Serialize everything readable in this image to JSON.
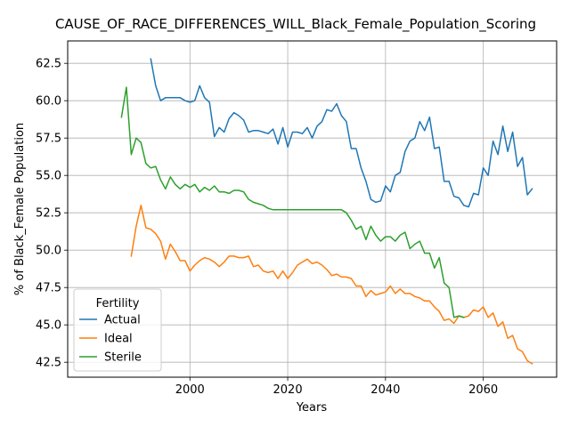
{
  "chart_data": {
    "type": "line",
    "title": "CAUSE_OF_RACE_DIFFERENCES_WILL_Black_Female_Population_Scoring",
    "xlabel": "Years",
    "ylabel": "% of Black_Female Population",
    "xlim": [
      1975,
      2075
    ],
    "ylim": [
      41.5,
      64.0
    ],
    "xticks": [
      2000,
      2020,
      2040,
      2060
    ],
    "yticks": [
      42.5,
      45.0,
      47.5,
      50.0,
      52.5,
      55.0,
      57.5,
      60.0,
      62.5
    ],
    "xtick_labels": [
      "2000",
      "2020",
      "2040",
      "2060"
    ],
    "ytick_labels": [
      "42.5",
      "45.0",
      "47.5",
      "50.0",
      "52.5",
      "55.0",
      "57.5",
      "60.0",
      "62.5"
    ],
    "grid": true,
    "legend": {
      "title": "Fertility",
      "position": "lower-left"
    },
    "series": [
      {
        "name": "Actual",
        "color": "#1f77b4",
        "x": [
          1992,
          1993,
          1994,
          1995,
          1996,
          1997,
          1998,
          1999,
          2000,
          2001,
          2002,
          2003,
          2004,
          2005,
          2006,
          2007,
          2008,
          2009,
          2010,
          2011,
          2012,
          2013,
          2014,
          2015,
          2016,
          2017,
          2018,
          2019,
          2020,
          2021,
          2022,
          2023,
          2024,
          2025,
          2026,
          2027,
          2028,
          2029,
          2030,
          2031,
          2032,
          2033,
          2034,
          2035,
          2036,
          2037,
          2038,
          2039,
          2040,
          2041,
          2042,
          2043,
          2044,
          2045,
          2046,
          2047,
          2048,
          2049,
          2050,
          2051,
          2052,
          2053,
          2054,
          2055,
          2056,
          2057,
          2058,
          2059,
          2060,
          2061,
          2062,
          2063,
          2064,
          2065,
          2066,
          2067,
          2068,
          2069,
          2070
        ],
        "y": [
          62.8,
          61.0,
          60.0,
          60.2,
          60.2,
          60.2,
          60.2,
          60.0,
          59.9,
          60.0,
          61.0,
          60.2,
          59.9,
          57.6,
          58.2,
          57.9,
          58.8,
          59.2,
          59.0,
          58.7,
          57.9,
          58.0,
          58.0,
          57.9,
          57.8,
          58.1,
          57.1,
          58.2,
          56.9,
          57.9,
          57.9,
          57.8,
          58.2,
          57.5,
          58.3,
          58.6,
          59.4,
          59.3,
          59.8,
          59.0,
          58.6,
          56.8,
          56.8,
          55.5,
          54.6,
          53.4,
          53.2,
          53.3,
          54.3,
          53.9,
          55.0,
          55.2,
          56.6,
          57.3,
          57.5,
          58.6,
          58.0,
          58.9,
          56.8,
          56.9,
          54.6,
          54.6,
          53.6,
          53.5,
          53.0,
          52.9,
          53.8,
          53.7,
          55.5,
          55.0,
          57.3,
          56.4,
          58.3,
          56.6,
          57.9,
          55.6,
          56.2,
          53.7,
          54.1
        ]
      },
      {
        "name": "Ideal",
        "color": "#ff7f0e",
        "x": [
          1988,
          1989,
          1990,
          1991,
          1992,
          1993,
          1994,
          1995,
          1996,
          1997,
          1998,
          1999,
          2000,
          2001,
          2002,
          2003,
          2004,
          2005,
          2006,
          2007,
          2008,
          2009,
          2010,
          2011,
          2012,
          2013,
          2014,
          2015,
          2016,
          2017,
          2018,
          2019,
          2020,
          2021,
          2022,
          2023,
          2024,
          2025,
          2026,
          2027,
          2028,
          2029,
          2030,
          2031,
          2032,
          2033,
          2034,
          2035,
          2036,
          2037,
          2038,
          2039,
          2040,
          2041,
          2042,
          2043,
          2044,
          2045,
          2046,
          2047,
          2048,
          2049,
          2050,
          2051,
          2052,
          2053,
          2054,
          2055,
          2056,
          2057,
          2058,
          2059,
          2060,
          2061,
          2062,
          2063,
          2064,
          2065,
          2066,
          2067,
          2068,
          2069,
          2070
        ],
        "y": [
          49.6,
          51.6,
          53.0,
          51.5,
          51.4,
          51.1,
          50.6,
          49.4,
          50.4,
          49.9,
          49.3,
          49.3,
          48.6,
          49.0,
          49.3,
          49.5,
          49.4,
          49.2,
          48.9,
          49.2,
          49.6,
          49.6,
          49.5,
          49.5,
          49.6,
          48.9,
          49.0,
          48.6,
          48.5,
          48.6,
          48.1,
          48.6,
          48.1,
          48.5,
          49.0,
          49.2,
          49.4,
          49.1,
          49.2,
          49.0,
          48.7,
          48.3,
          48.4,
          48.2,
          48.2,
          48.1,
          47.6,
          47.6,
          46.9,
          47.3,
          47.0,
          47.1,
          47.2,
          47.6,
          47.1,
          47.4,
          47.1,
          47.1,
          46.9,
          46.8,
          46.6,
          46.6,
          46.2,
          45.9,
          45.3,
          45.4,
          45.1,
          45.6,
          45.5,
          45.6,
          46.0,
          45.9,
          46.2,
          45.5,
          45.8,
          44.9,
          45.2,
          44.1,
          44.3,
          43.4,
          43.2,
          42.6,
          42.4
        ]
      },
      {
        "name": "Sterile",
        "color": "#2ca02c",
        "x": [
          1986,
          1987,
          1988,
          1989,
          1990,
          1991,
          1992,
          1993,
          1994,
          1995,
          1996,
          1997,
          1998,
          1999,
          2000,
          2001,
          2002,
          2003,
          2004,
          2005,
          2006,
          2007,
          2008,
          2009,
          2010,
          2011,
          2012,
          2013,
          2014,
          2015,
          2016,
          2017,
          2018,
          2019,
          2020,
          2021,
          2022,
          2023,
          2024,
          2025,
          2026,
          2027,
          2028,
          2029,
          2030,
          2031,
          2032,
          2033,
          2034,
          2035,
          2036,
          2037,
          2038,
          2039,
          2040,
          2041,
          2042,
          2043,
          2044,
          2045,
          2046,
          2047,
          2048,
          2049,
          2050,
          2051,
          2052,
          2053,
          2054,
          2055,
          2056
        ],
        "y": [
          58.9,
          60.9,
          56.4,
          57.5,
          57.2,
          55.8,
          55.5,
          55.6,
          54.7,
          54.1,
          54.9,
          54.4,
          54.1,
          54.4,
          54.2,
          54.4,
          53.9,
          54.2,
          54.0,
          54.3,
          53.9,
          53.9,
          53.8,
          54.0,
          54.0,
          53.9,
          53.4,
          53.2,
          53.1,
          53.0,
          52.8,
          52.7,
          52.7,
          52.7,
          52.7,
          52.7,
          52.7,
          52.7,
          52.7,
          52.7,
          52.7,
          52.7,
          52.7,
          52.7,
          52.7,
          52.7,
          52.5,
          52.0,
          51.4,
          51.6,
          50.7,
          51.6,
          51.0,
          50.6,
          50.9,
          50.9,
          50.6,
          51.0,
          51.2,
          50.1,
          50.4,
          50.6,
          49.8,
          49.8,
          48.8,
          49.5,
          47.8,
          47.5,
          45.5,
          45.6,
          45.5
        ]
      }
    ]
  }
}
